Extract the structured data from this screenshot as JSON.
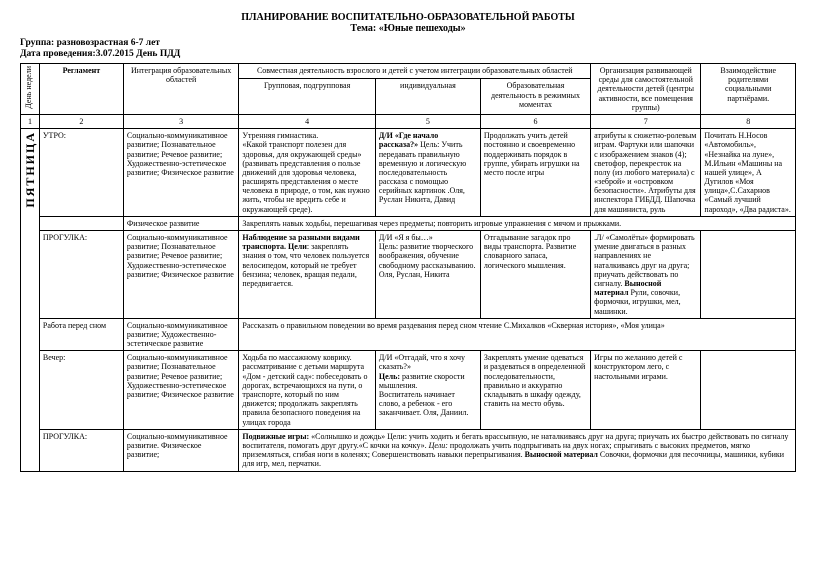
{
  "heading": {
    "title": "ПЛАНИРОВАНИЕ ВОСПИТАТЕЛЬНО-ОБРАЗОВАТЕЛЬНОЙ РАБОТЫ",
    "theme_label": "Тема: «Юные пешеходы»"
  },
  "meta": {
    "group_label": "Группа: разновозрастная 6-7 лет",
    "date_label": "Дата проведения:3.07.2015 День ПДД"
  },
  "header": {
    "day_col": "День недели",
    "reg": "Регламент",
    "int": "Интеграция образовательных областей",
    "joint_top": "Совместная деятельность взрослого и детей с учетом интеграции образовательных областей",
    "grp": "Групповая, подгрупповая",
    "ind": "индивидуальная",
    "edu": "Образовательная деятельность в режимных моментах",
    "org": "Организация развивающей среды для самостоятельной деятельности детей (центры активности, все помещения группы)",
    "par": "Взаимодействие родителями социальными партнёрами."
  },
  "nums": {
    "c1": "1",
    "c2": "2",
    "c3": "3",
    "c4": "4",
    "c5": "5",
    "c6": "6",
    "c7": "7",
    "c8": "8"
  },
  "day_name": "ПЯТНИЦА",
  "rows": {
    "morning": {
      "reg": "УТРО:",
      "int": "Социально-коммуникативное развитие; Познавательное развитие; Речевое развитие; Художественно-эстетическое развитие; Физическое развитие",
      "grp": "Утренняя гимнастика.\n«Какой транспорт полезен для здоровья, для окружающей среды» (развивать представления о пользе движений для здоровья человека, расширять представления о месте человека в природе, о том, как нужно жить, чтобы не вредить себе и окружающей среде).",
      "ind_b": "Д/И «Где начало рассказа?»",
      "ind": " Цель: Учить передавать правильную временную и логическую последовательность рассказа с помощью серийных картинок .Оля, Руслан Никита, Давид",
      "edu": "Продолжать учить детей постоянно и своевременно поддерживать порядок в группе, убирать игрушки на место после игры",
      "org": "атрибуты к сюжетно-ролевым играм. Фартуки или шапочки с изображением знаков (4); светофор, перекресток на полу (из любого материала) с «зеброй» и «островком безопасности». Атрибуты для инспектора ГИБДД. Шапочка для машиниста, руль",
      "par": "Почитать Н.Носов «Автомобиль», «Незнайка на луне», М.Ильин «Машины на нашей улице», А Дугилов «Моя улица»,С.Сахарнов «Самый лучший пароход», «Два радиста»."
    },
    "phys": {
      "int": "Физическое развитие",
      "merged": "Закреплять навык ходьбы, перешагивая через предметы; повторить игровые упражнения с мячом и прыжками."
    },
    "walk1": {
      "reg": "ПРОГУЛКА:",
      "int": "Социально-коммуникативное развитие; Познавательное развитие; Речевое развитие; Художественно-эстетическое развитие; Физическое развитие",
      "grp_b": "Наблюдение за разными видами транспорта. Цели",
      "grp": ": закреплять знания о том, что человек пользуется велосипедом, который не требует бензина; человек, вращая педали, передвигается.",
      "ind": "Д/И «Я я бы…»\nЦель: развитие творческого воображения, обучение свободному рассказыванию. Оля, Руслан, Никита",
      "edu": "Отгадывание загадок про виды транспорта. Развитие словарного запаса, логического мышления.",
      "org": ".Л/ «Самолёты» формировать умение двигаться в разных направлениях не наталкиваясь друг на друга; приучать действовать по сигналу. ",
      "org_b": "Выносной материал",
      "org_tail": " Рули, совочки, формочки, игрушки, мел, машинки."
    },
    "prework": {
      "reg": "Работа перед сном",
      "int": "Социально-коммуникативное развитие; Художественно-эстетическое развитие",
      "merged": " Рассказать о правильном поведении во время раздевания перед сном чтение С.Михалков «Скверная история», «Моя улица»"
    },
    "evening": {
      "reg": "Вечер:",
      "int": "Социально-коммуникативное развитие; Познавательное развитие; Речевое развитие; Художественно-эстетическое развитие; Физическое развитие",
      "grp": "Ходьба по массажному коврику.\n рассматривание  с детьми маршрута «Дом - детский сад»: побеседовать о дорогах, встречающихся на пути, о транспорте, который по ним движется; продолжать закреплять правила безопасного поведения на улицах города",
      "ind_head": "Д/И «Отгадай, что я хочу сказать?»",
      "ind_b": "Цель:",
      "ind": " развитие скорости мышления.\nВоспитатель начинает слово, а ребенок - его заканчивает. Оля, Даниил.",
      "edu": "Закреплять умение одеваться и раздеваться в определенной последовательности, правильно и аккуратно складывать в шкафу одежду, ставить на место обувь.",
      "org": "Игры по желанию детей с конструктором лего, с настольными играми."
    },
    "walk2": {
      "reg": "ПРОГУЛКА:",
      "int": "Социально-коммуникативное развитие. Физическое развитие;",
      "m_b1": "Подвижные игры:",
      "m1": " «Солнышко и дождь» Цели: учить ходить и бегать врассыпную, не наталкиваясь друг на друга; приучать их быстро действовать по сигналу воспитателя, помогать друг другу.«С кочки на кочку». ",
      "m_i": "Цели:",
      "m2": " продолжать учить подпрыгивать на двух ногах; спрыгивать с высоких предметов, мягко приземляться, сгибая ноги в коленях; Совершенствовать навыки перепрыгивания. ",
      "m_b2": "Выносной материал",
      "m3": " Совочки, формочки для песочницы, машинки, кубики для игр, мел, перчатки."
    }
  }
}
